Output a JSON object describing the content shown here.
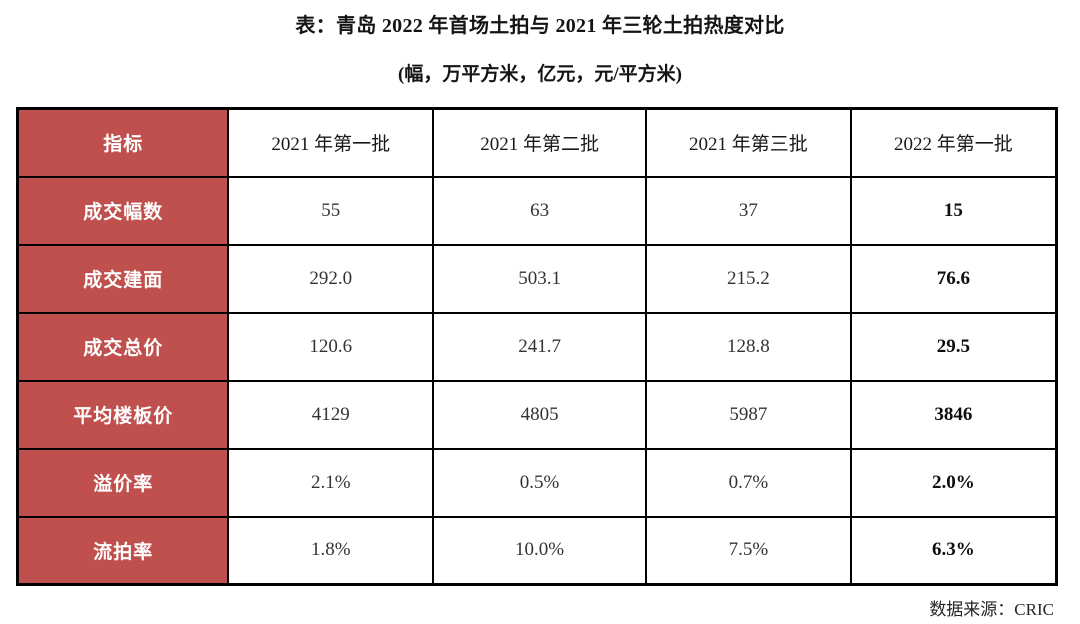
{
  "header": {
    "title": "表：青岛 2022 年首场土拍与 2021 年三轮土拍热度对比",
    "subtitle": "(幅，万平方米，亿元，元/平方米)"
  },
  "footer": {
    "source": "数据来源：CRIC"
  },
  "colors": {
    "label_cell_bg": "#c0504d",
    "label_cell_text": "#ffffff",
    "grid_border": "#000000",
    "value_text": "#333333"
  },
  "chart_data": {
    "type": "table",
    "title": "表：青岛 2022 年首场土拍与 2021 年三轮土拍热度对比",
    "subtitle_units": "(幅，万平方米，亿元，元/平方米)",
    "columns": [
      "指标",
      "2021 年第一批",
      "2021 年第二批",
      "2021 年第三批",
      "2022 年第一批"
    ],
    "rows": [
      {
        "label": "成交幅数",
        "values": [
          "55",
          "63",
          "37",
          "15"
        ]
      },
      {
        "label": "成交建面",
        "values": [
          "292.0",
          "503.1",
          "215.2",
          "76.6"
        ]
      },
      {
        "label": "成交总价",
        "values": [
          "120.6",
          "241.7",
          "128.8",
          "29.5"
        ]
      },
      {
        "label": "平均楼板价",
        "values": [
          "4129",
          "4805",
          "5987",
          "3846"
        ]
      },
      {
        "label": "溢价率",
        "values": [
          "2.1%",
          "0.5%",
          "0.7%",
          "2.0%"
        ]
      },
      {
        "label": "流拍率",
        "values": [
          "1.8%",
          "10.0%",
          "7.5%",
          "6.3%"
        ]
      }
    ],
    "emphasized_column": "2022 年第一批",
    "source": "数据来源：CRIC"
  }
}
